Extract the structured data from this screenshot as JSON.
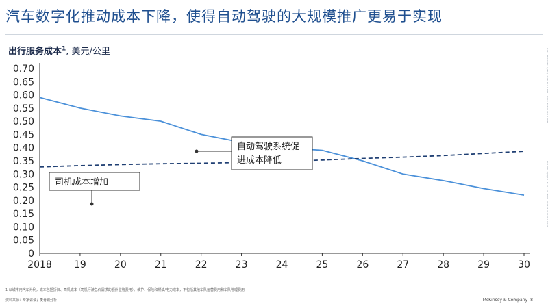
{
  "title": "汽车数字化推动成本下降，使得自动驾驶的大规模推广更易于实现",
  "chart_heading": {
    "bold": "出行服务成本",
    "sup": "1",
    "rest": ", 美元/公里"
  },
  "side_notes": {
    "top": "Last Modified 4/30/2016 6:47 PM China Standard Time",
    "bottom": "Printed 4/6/2016 10:59 AM China Standard Time"
  },
  "footnote": "1 以城市用汽车为例，成本包括折旧、司机成本（司机行驶总价需求的额外监管费用）、维护、保险和燃油/电力成本，不包括其他车队运营费用和车队管理费用",
  "source": "资料来源：专家访谈；麦肯锡分析",
  "brand": "McKinsey & Company",
  "page_number": "8",
  "chart_data": {
    "type": "line",
    "title": "",
    "xlabel": "",
    "ylabel": "",
    "x": [
      2018,
      2019,
      2020,
      2021,
      2022,
      2023,
      2024,
      2025,
      2026,
      2027,
      2028,
      2029,
      2030
    ],
    "xticklabels": [
      "2018",
      "19",
      "20",
      "21",
      "22",
      "23",
      "24",
      "25",
      "26",
      "27",
      "28",
      "29",
      "30"
    ],
    "ylim": [
      0,
      0.7
    ],
    "yticks": [
      0,
      0.05,
      0.1,
      0.15,
      0.2,
      0.25,
      0.3,
      0.35,
      0.4,
      0.45,
      0.5,
      0.55,
      0.6,
      0.65,
      0.7
    ],
    "yticklabels": [
      "0",
      "0.05",
      "0.10",
      "0.15",
      "0.20",
      "0.25",
      "0.30",
      "0.35",
      "0.40",
      "0.45",
      "0.50",
      "0.55",
      "0.60",
      "0.65",
      "0.70"
    ],
    "grid": false,
    "legend": "none",
    "series": [
      {
        "style": "solid",
        "color": "#4a90d9",
        "values": [
          0.59,
          0.55,
          0.52,
          0.5,
          0.45,
          0.42,
          0.4,
          0.39,
          0.35,
          0.3,
          0.275,
          0.245,
          0.22
        ]
      },
      {
        "style": "dashed",
        "color": "#1f3f73",
        "values": [
          0.327,
          0.332,
          0.336,
          0.339,
          0.341,
          0.344,
          0.348,
          0.353,
          0.359,
          0.364,
          0.37,
          0.378,
          0.386
        ]
      }
    ],
    "annotations": [
      {
        "lines": [
          "自动驾驶系统促",
          "进成本降低"
        ],
        "series_index": 0,
        "x": 2022.3,
        "y": 0.38
      },
      {
        "lines": [
          "司机成本增加"
        ],
        "series_index": 1,
        "x": 2019.3,
        "y": 0.33
      }
    ]
  }
}
